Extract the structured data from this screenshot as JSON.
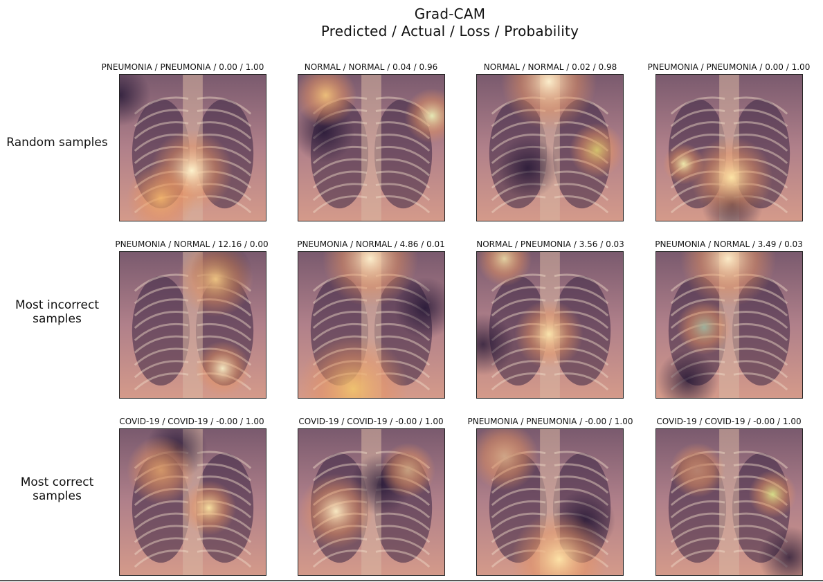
{
  "figure": {
    "title_line1": "Grad-CAM",
    "title_line2": "Predicted / Actual / Loss / Probability"
  },
  "rows": [
    {
      "label_lines": [
        "Random samples"
      ],
      "cells": [
        {
          "caption": "PNEUMONIA / PNEUMONIA / 0.00 / 1.00"
        },
        {
          "caption": "NORMAL / NORMAL / 0.04 / 0.96"
        },
        {
          "caption": "NORMAL / NORMAL / 0.02 / 0.98"
        },
        {
          "caption": "PNEUMONIA / PNEUMONIA / 0.00 / 1.00"
        }
      ]
    },
    {
      "label_lines": [
        "Most incorrect",
        "samples"
      ],
      "cells": [
        {
          "caption": "PNEUMONIA / NORMAL / 12.16 / 0.00"
        },
        {
          "caption": "PNEUMONIA / NORMAL / 4.86 / 0.01"
        },
        {
          "caption": "NORMAL / PNEUMONIA / 3.56 / 0.03"
        },
        {
          "caption": "PNEUMONIA / NORMAL / 3.49 / 0.03"
        }
      ]
    },
    {
      "label_lines": [
        "Most correct",
        "samples"
      ],
      "cells": [
        {
          "caption": "COVID-19 / COVID-19 / -0.00 / 1.00"
        },
        {
          "caption": "COVID-19 / COVID-19 / -0.00 / 1.00"
        },
        {
          "caption": "PNEUMONIA / PNEUMONIA / -0.00 / 1.00"
        },
        {
          "caption": "COVID-19 / COVID-19 / -0.00 / 1.00"
        }
      ]
    }
  ]
}
